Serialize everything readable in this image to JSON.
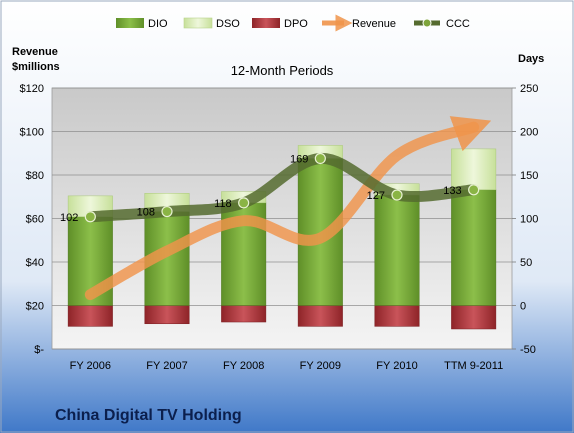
{
  "chart_data": {
    "type": "bar",
    "subtitle": "12-Month Periods",
    "company": "China Digital TV Holding",
    "left_axis": {
      "title_line1": "Revenue",
      "title_line2": "$millions",
      "ticks": [
        "$-",
        "$20",
        "$40",
        "$60",
        "$80",
        "$100",
        "$120"
      ],
      "ylim": [
        0,
        120
      ]
    },
    "right_axis": {
      "title": "Days",
      "ticks": [
        "-50",
        "0",
        "50",
        "100",
        "150",
        "200",
        "250"
      ],
      "ylim": [
        -50,
        250
      ]
    },
    "categories": [
      "FY 2006",
      "FY 2007",
      "FY 2008",
      "FY 2009",
      "FY 2010",
      "TTM 9-2011"
    ],
    "series": [
      {
        "name": "DIO",
        "axis": "days",
        "stack": "positive",
        "values": [
          102,
          108,
          118,
          169,
          127,
          133
        ],
        "color": "#76a63a"
      },
      {
        "name": "DSO",
        "axis": "days",
        "stack": "positive",
        "values": [
          24,
          21,
          13,
          15,
          13,
          47
        ],
        "color": "#d8ecb1"
      },
      {
        "name": "DPO",
        "axis": "days",
        "stack": "negative",
        "values": [
          -24,
          -21,
          -19,
          -24,
          -24,
          -27
        ],
        "color": "#b03a3e"
      },
      {
        "name": "Revenue",
        "axis": "revenue",
        "type": "line",
        "values": [
          25,
          45,
          59,
          51,
          89,
          102
        ],
        "color": "#f0944a"
      },
      {
        "name": "CCC",
        "axis": "days",
        "type": "line",
        "values": [
          102,
          108,
          118,
          169,
          127,
          133
        ],
        "color": "#556b2f",
        "labels": [
          "102",
          "108",
          "118",
          "169",
          "127",
          "133"
        ]
      }
    ],
    "grid": true,
    "legend_position": "top"
  }
}
